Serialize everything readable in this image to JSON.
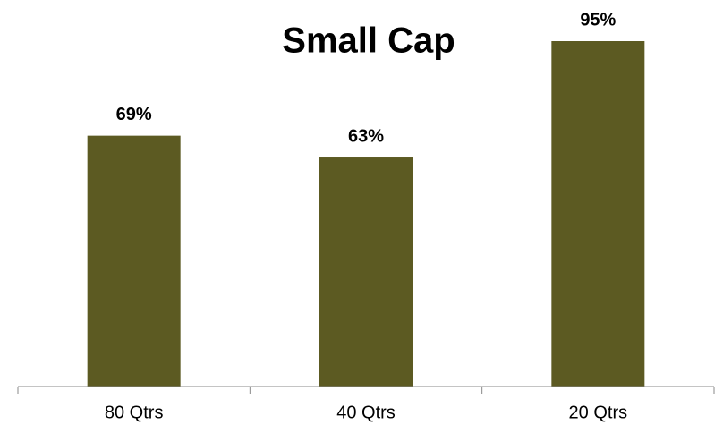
{
  "chart_data": {
    "type": "bar",
    "title": "Small Cap",
    "categories": [
      "80 Qtrs",
      "40 Qtrs",
      "20 Qtrs"
    ],
    "values": [
      69,
      63,
      95
    ],
    "value_labels": [
      "69%",
      "63%",
      "95%"
    ],
    "color": "#5c5a22"
  }
}
